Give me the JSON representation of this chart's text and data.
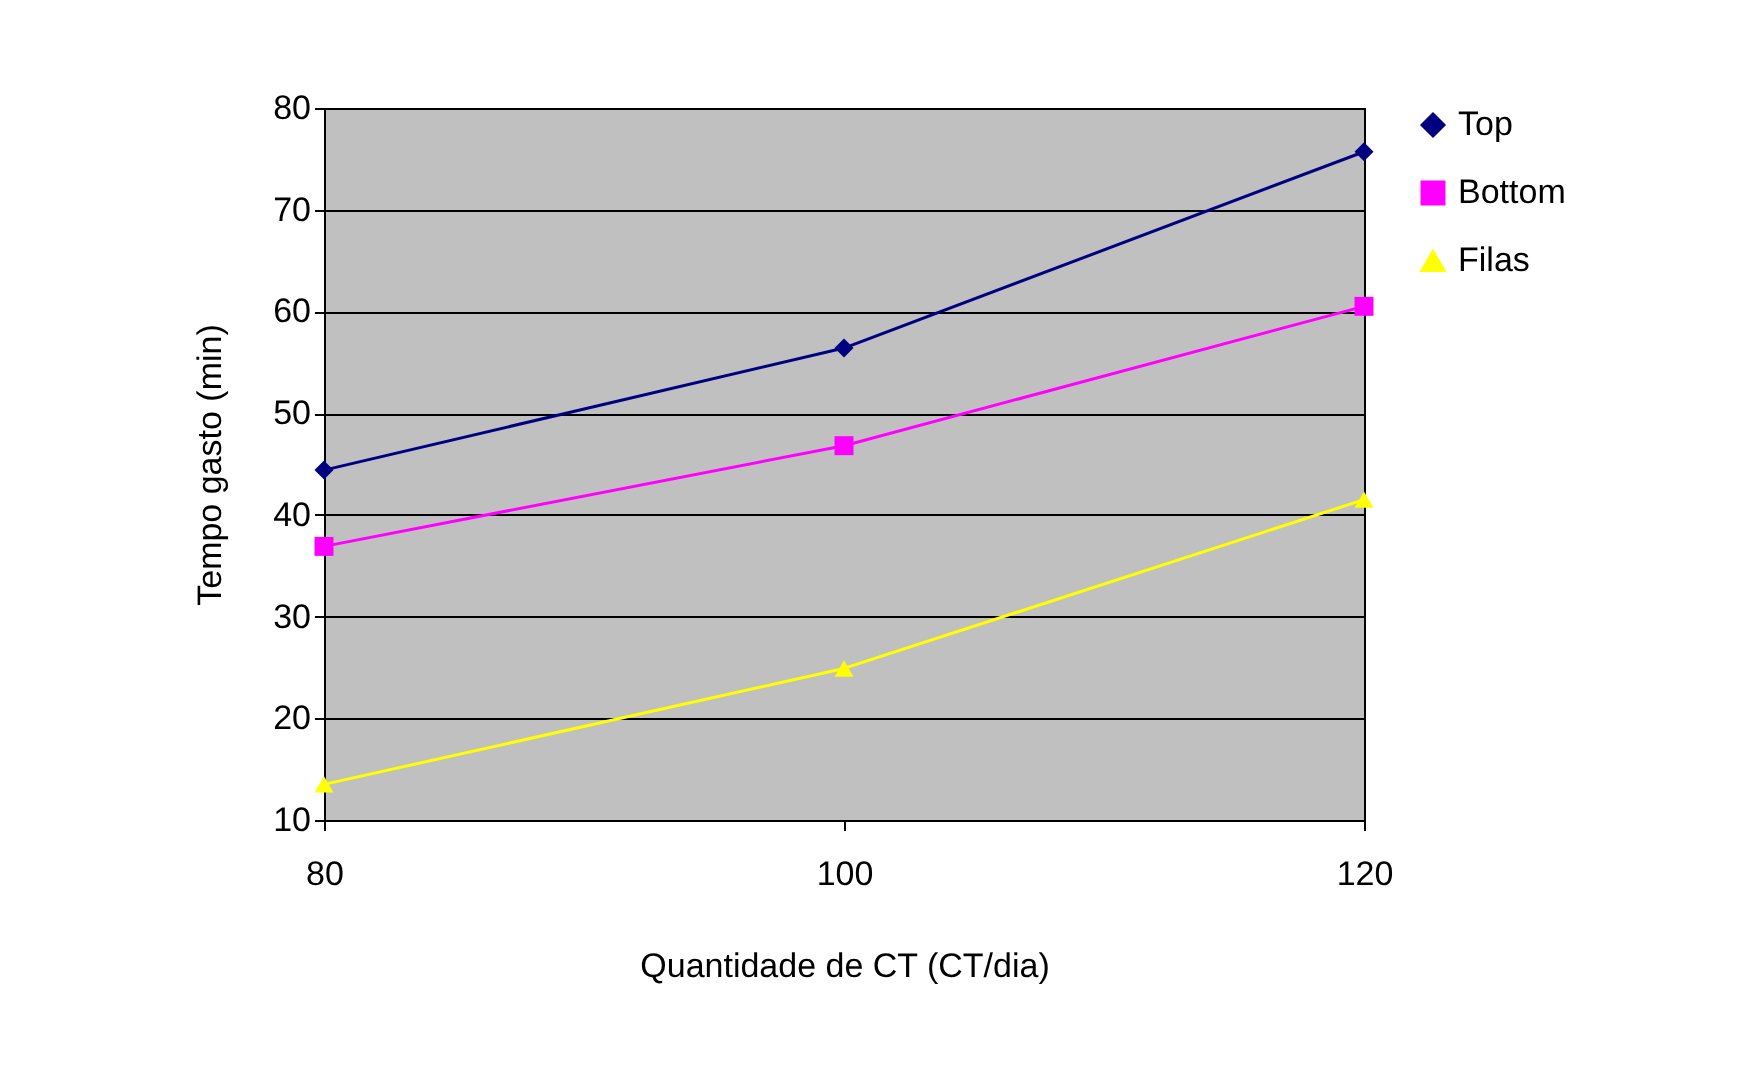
{
  "chart_data": {
    "type": "line",
    "xlabel": "Quantidade de CT (CT/dia)",
    "ylabel": "Tempo gasto (min)",
    "x": [
      80,
      100,
      120
    ],
    "series": [
      {
        "name": "Top",
        "color": "#000080",
        "marker": "diamond",
        "values": [
          44.4,
          56.4,
          75.7
        ]
      },
      {
        "name": "Bottom",
        "color": "#ff00ff",
        "marker": "square",
        "values": [
          36.9,
          46.8,
          60.5
        ]
      },
      {
        "name": "Filas",
        "color": "#ffff00",
        "marker": "triangle",
        "values": [
          13.5,
          24.9,
          41.5
        ]
      }
    ],
    "xlim": [
      80,
      120
    ],
    "xticks": [
      80,
      100,
      120
    ],
    "ylim": [
      10,
      80
    ],
    "yticks": [
      10,
      20,
      30,
      40,
      50,
      60,
      70,
      80
    ],
    "grid": "y",
    "legend": "right",
    "line_style": "solid"
  }
}
